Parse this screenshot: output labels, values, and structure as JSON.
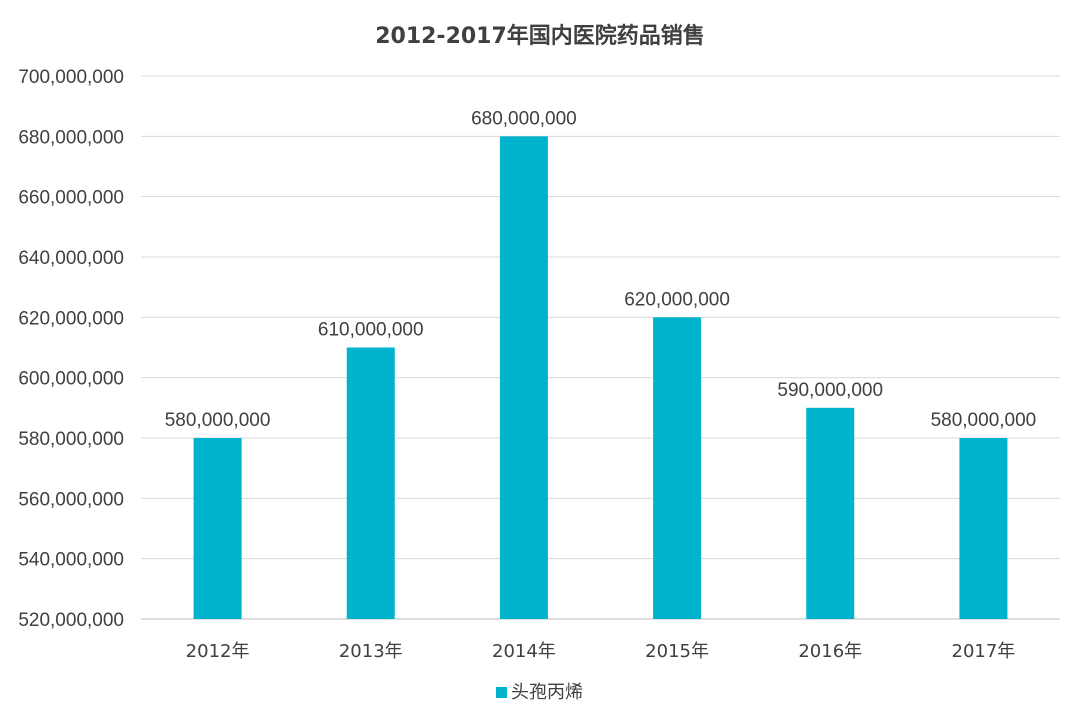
{
  "chart_data": {
    "type": "bar",
    "title": "2012-2017年国内医院药品销售",
    "categories": [
      "2012年",
      "2013年",
      "2014年",
      "2015年",
      "2016年",
      "2017年"
    ],
    "series": [
      {
        "name": "头孢丙烯",
        "color": "#00b3cc",
        "values": [
          580000000,
          610000000,
          680000000,
          620000000,
          590000000,
          580000000
        ],
        "labels": [
          "580,000,000",
          "610,000,000",
          "680,000,000",
          "620,000,000",
          "590,000,000",
          "580,000,000"
        ]
      }
    ],
    "ylim": [
      520000000,
      700000000
    ],
    "y_ticks": [
      520000000,
      540000000,
      560000000,
      580000000,
      600000000,
      620000000,
      640000000,
      660000000,
      680000000,
      700000000
    ],
    "y_tick_labels": [
      "520,000,000",
      "540,000,000",
      "560,000,000",
      "580,000,000",
      "600,000,000",
      "620,000,000",
      "640,000,000",
      "660,000,000",
      "680,000,000",
      "700,000,000"
    ],
    "xlabel": "",
    "ylabel": "",
    "grid": true,
    "legend_position": "bottom"
  }
}
